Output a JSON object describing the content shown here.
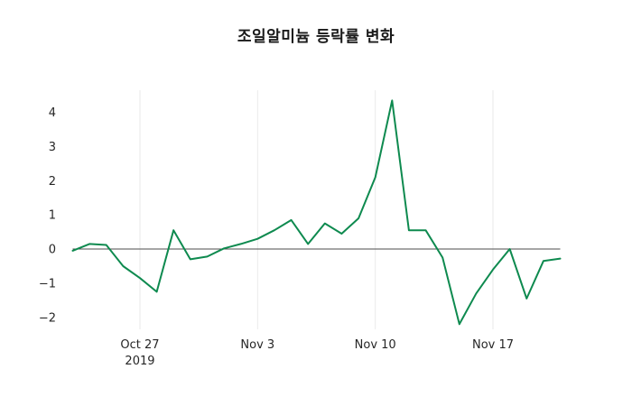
{
  "chart_data": {
    "type": "line",
    "title": "조일알미늄 등락률 변화",
    "series_name": "등락률",
    "x": [
      "Oct 23",
      "Oct 24",
      "Oct 25",
      "Oct 26",
      "Oct 27",
      "Oct 28",
      "Oct 29",
      "Oct 30",
      "Oct 31",
      "Nov 1",
      "Nov 2",
      "Nov 3",
      "Nov 4",
      "Nov 5",
      "Nov 6",
      "Nov 7",
      "Nov 8",
      "Nov 9",
      "Nov 10",
      "Nov 11",
      "Nov 12",
      "Nov 13",
      "Nov 14",
      "Nov 15",
      "Nov 16",
      "Nov 17",
      "Nov 18",
      "Nov 19",
      "Nov 20",
      "Nov 21"
    ],
    "values": [
      -0.05,
      0.15,
      0.12,
      -0.5,
      -0.85,
      -1.25,
      0.55,
      -0.3,
      -0.22,
      0.02,
      0.15,
      0.3,
      0.55,
      0.85,
      0.15,
      0.75,
      0.45,
      0.9,
      2.1,
      4.35,
      0.55,
      0.55,
      -0.25,
      -2.2,
      -1.3,
      -0.6,
      0.0,
      -1.45,
      -0.35,
      -0.28
    ],
    "xlabel": "",
    "ylabel": "",
    "ylim": [
      -2.35,
      4.65
    ],
    "y_ticks": [
      -2,
      -1,
      0,
      1,
      2,
      3,
      4
    ],
    "x_ticks": [
      {
        "index": 4,
        "label": "Oct 27",
        "sublabel": "2019"
      },
      {
        "index": 11,
        "label": "Nov 3",
        "sublabel": ""
      },
      {
        "index": 18,
        "label": "Nov 10",
        "sublabel": ""
      },
      {
        "index": 25,
        "label": "Nov 17",
        "sublabel": ""
      }
    ],
    "grid": "vertical-only",
    "legend": "none",
    "line_color": "#0e8a4f",
    "zero_line_color": "#4d4d4d",
    "grid_color": "#eaeaea",
    "text_color": "#262626",
    "background_color": "#ffffff"
  }
}
